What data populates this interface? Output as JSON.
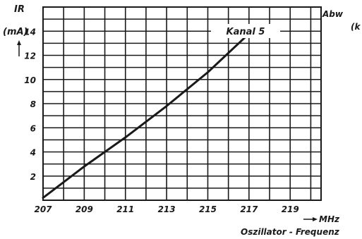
{
  "chart_data": {
    "type": "line",
    "ylabel_line1": "IR",
    "ylabel_line2": "(mA)",
    "xlabel_prefix": "MHz",
    "xlabel": "Oszillator - Frequenz",
    "right_label_line1": "Abw",
    "right_label_line2": "(k",
    "series": [
      {
        "name": "Kanal 5",
        "x": [
          207,
          209,
          211,
          213,
          215,
          217
        ],
        "y": [
          0.2,
          2.8,
          5.2,
          7.8,
          10.6,
          13.8
        ]
      }
    ],
    "xlim": [
      207,
      220.5
    ],
    "ylim": [
      0,
      16
    ],
    "x_ticks": [
      207,
      209,
      211,
      213,
      215,
      217,
      219
    ],
    "y_ticks": [
      2,
      4,
      6,
      8,
      10,
      12,
      14
    ],
    "grid": true
  }
}
